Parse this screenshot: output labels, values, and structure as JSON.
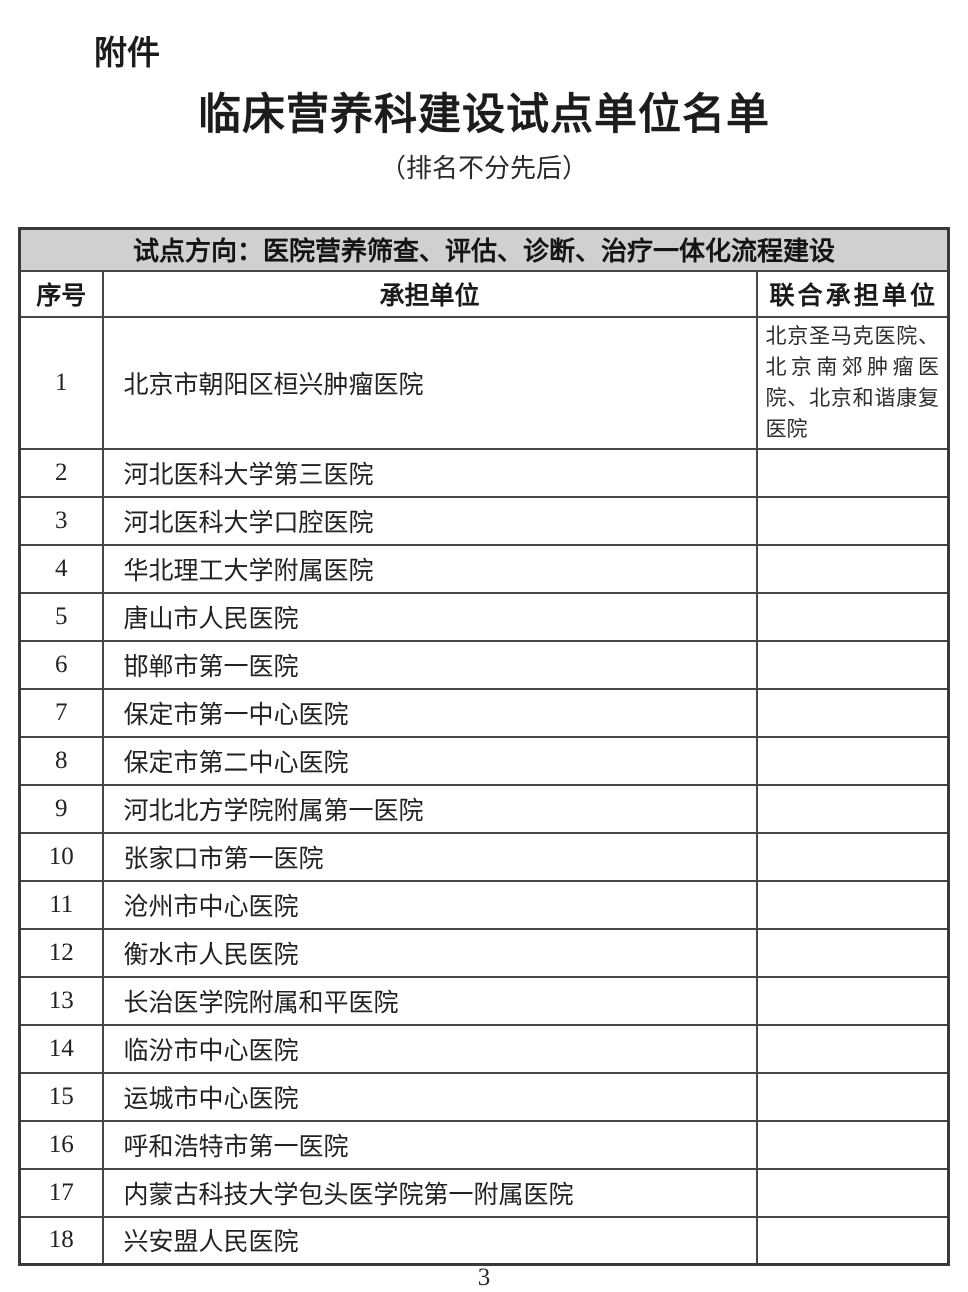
{
  "page": {
    "attachment_label": "附件",
    "title": "临床营养科建设试点单位名单",
    "subtitle": "（排名不分先后）",
    "page_number": "3"
  },
  "table": {
    "direction_header": "试点方向：医院营养筛查、评估、诊断、治疗一体化流程建设",
    "columns": [
      "序号",
      "承担单位",
      "联合承担单位"
    ],
    "rows": [
      {
        "no": "1",
        "unit": "北京市朝阳区桓兴肿瘤医院",
        "joint": "北京圣马克医院、北京南郊肿瘤医院、北京和谐康复医院"
      },
      {
        "no": "2",
        "unit": "河北医科大学第三医院",
        "joint": ""
      },
      {
        "no": "3",
        "unit": "河北医科大学口腔医院",
        "joint": ""
      },
      {
        "no": "4",
        "unit": "华北理工大学附属医院",
        "joint": ""
      },
      {
        "no": "5",
        "unit": "唐山市人民医院",
        "joint": ""
      },
      {
        "no": "6",
        "unit": "邯郸市第一医院",
        "joint": ""
      },
      {
        "no": "7",
        "unit": "保定市第一中心医院",
        "joint": ""
      },
      {
        "no": "8",
        "unit": "保定市第二中心医院",
        "joint": ""
      },
      {
        "no": "9",
        "unit": "河北北方学院附属第一医院",
        "joint": ""
      },
      {
        "no": "10",
        "unit": "张家口市第一医院",
        "joint": ""
      },
      {
        "no": "11",
        "unit": "沧州市中心医院",
        "joint": ""
      },
      {
        "no": "12",
        "unit": "衡水市人民医院",
        "joint": ""
      },
      {
        "no": "13",
        "unit": "长治医学院附属和平医院",
        "joint": ""
      },
      {
        "no": "14",
        "unit": "临汾市中心医院",
        "joint": ""
      },
      {
        "no": "15",
        "unit": "运城市中心医院",
        "joint": ""
      },
      {
        "no": "16",
        "unit": "呼和浩特市第一医院",
        "joint": ""
      },
      {
        "no": "17",
        "unit": "内蒙古科技大学包头医学院第一附属医院",
        "joint": ""
      },
      {
        "no": "18",
        "unit": "兴安盟人民医院",
        "joint": ""
      }
    ]
  },
  "colors": {
    "header_bg": "#d1d0d0",
    "border": "#464646",
    "text": "#222222"
  }
}
